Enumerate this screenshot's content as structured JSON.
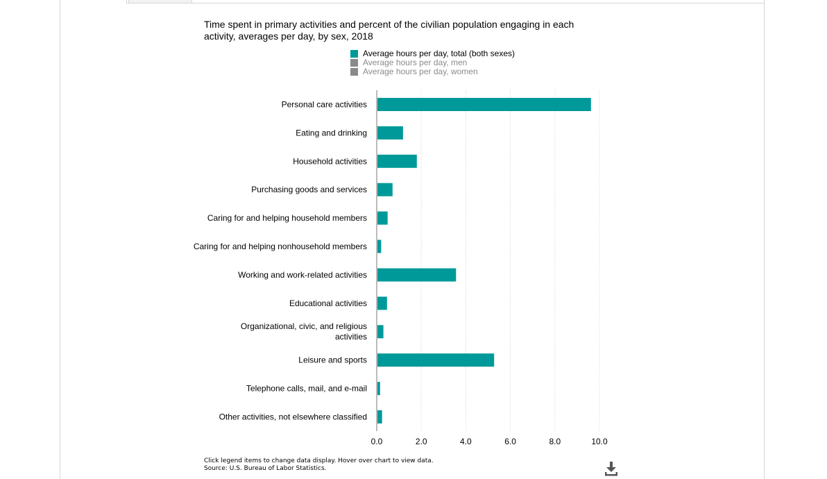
{
  "chart_title": "Time spent in primary activities and percent of the civilian population engaging in each activity, averages per day, by sex, 2018",
  "legend": [
    {
      "label": "Average hours per day, total (both sexes)",
      "color": "#009999",
      "active": true
    },
    {
      "label": "Average hours per day, men",
      "color": "#8a8a8a",
      "active": false
    },
    {
      "label": "Average hours per day, women",
      "color": "#8a8a8a",
      "active": false
    }
  ],
  "chart_data": {
    "type": "bar",
    "orientation": "horizontal",
    "title": "Time spent in primary activities and percent of the civilian population engaging in each activity, averages per day, by sex, 2018",
    "categories": [
      "Personal care activities",
      "Eating and drinking",
      "Household activities",
      "Purchasing goods and services",
      "Caring for and helping household members",
      "Caring for and helping nonhousehold members",
      "Working and work-related activities",
      "Educational activities",
      "Organizational, civic, and religious activities",
      "Leisure and sports",
      "Telephone calls, mail, and e-mail",
      "Other activities, not elsewhere classified"
    ],
    "series": [
      {
        "name": "Average hours per day, total (both sexes)",
        "color": "#009999",
        "values": [
          9.62,
          1.18,
          1.8,
          0.71,
          0.49,
          0.2,
          3.56,
          0.46,
          0.3,
          5.27,
          0.15,
          0.24
        ]
      }
    ],
    "xlim": [
      0,
      10
    ],
    "xticks": [
      "0.0",
      "2.0",
      "4.0",
      "6.0",
      "8.0",
      "10.0"
    ],
    "grid": true,
    "legend_position": "top"
  },
  "footnote": {
    "line1": "Click legend items to change data display. Hover over chart to view data.",
    "line2": "Source: U.S. Bureau of Labor Statistics."
  },
  "icons": {
    "download": "download-icon"
  }
}
